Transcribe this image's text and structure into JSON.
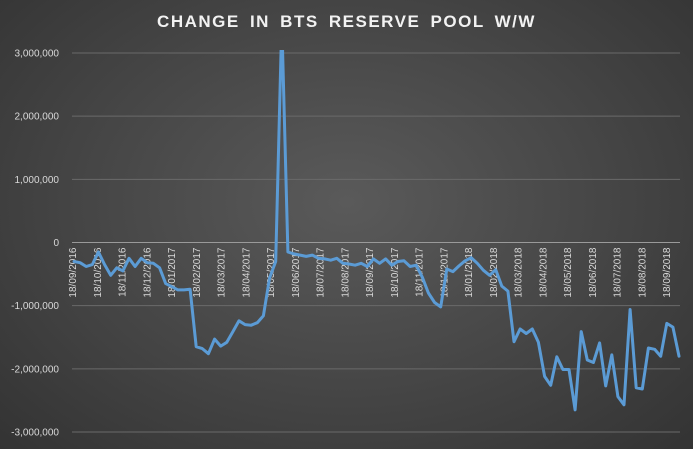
{
  "chart_data": {
    "type": "line",
    "title": "CHANGE  IN BTS RESERVE  POOL W/W",
    "xlabel": "",
    "ylabel": "",
    "ylim": [
      -3000000,
      3000000
    ],
    "y_ticks": [
      3000000,
      2000000,
      1000000,
      0,
      -1000000,
      -2000000,
      -3000000
    ],
    "y_tick_labels": [
      "3,000,000",
      "2,000,000",
      "1,000,000",
      "0",
      "-1,000,000",
      "-2,000,000",
      "-3,000,000"
    ],
    "x_tick_labels": [
      "18/09/2016",
      "18/10/2016",
      "18/11/2016",
      "18/12/2016",
      "18/01/2017",
      "18/02/2017",
      "18/03/2017",
      "18/04/2017",
      "18/05/2017",
      "18/06/2017",
      "18/07/2017",
      "18/08/2017",
      "18/09/2017",
      "18/10/2017",
      "18/11/2017",
      "18/12/2017",
      "18/01/2018",
      "18/02/2018",
      "18/03/2018",
      "18/04/2018",
      "18/05/2018",
      "18/06/2018",
      "18/07/2018",
      "18/08/2018",
      "18/09/2018"
    ],
    "grid": true,
    "legend": "none",
    "line_color": "#5b9bd5",
    "series": [
      {
        "values": [
          -300000,
          -320000,
          -380000,
          -350000,
          -150000,
          -350000,
          -520000,
          -400000,
          -450000,
          -250000,
          -380000,
          -250000,
          -320000,
          -330000,
          -400000,
          -650000,
          -700000,
          -750000,
          -750000,
          -740000,
          -1650000,
          -1680000,
          -1760000,
          -1530000,
          -1640000,
          -1580000,
          -1410000,
          -1240000,
          -1300000,
          -1310000,
          -1270000,
          -1160000,
          -560000,
          -300000,
          3500000,
          -150000,
          -180000,
          -200000,
          -220000,
          -200000,
          -250000,
          -260000,
          -280000,
          -250000,
          -330000,
          -340000,
          -360000,
          -330000,
          -380000,
          -260000,
          -330000,
          -260000,
          -360000,
          -300000,
          -290000,
          -380000,
          -360000,
          -550000,
          -800000,
          -950000,
          -1020000,
          -420000,
          -460000,
          -370000,
          -290000,
          -240000,
          -330000,
          -440000,
          -520000,
          -430000,
          -690000,
          -770000,
          -1570000,
          -1370000,
          -1440000,
          -1370000,
          -1580000,
          -2120000,
          -2260000,
          -1810000,
          -2010000,
          -2010000,
          -2650000,
          -1410000,
          -1860000,
          -1900000,
          -1590000,
          -2270000,
          -1780000,
          -2440000,
          -2570000,
          -1060000,
          -2300000,
          -2320000,
          -1670000,
          -1690000,
          -1800000,
          -1280000,
          -1340000,
          -1800000
        ]
      }
    ]
  }
}
